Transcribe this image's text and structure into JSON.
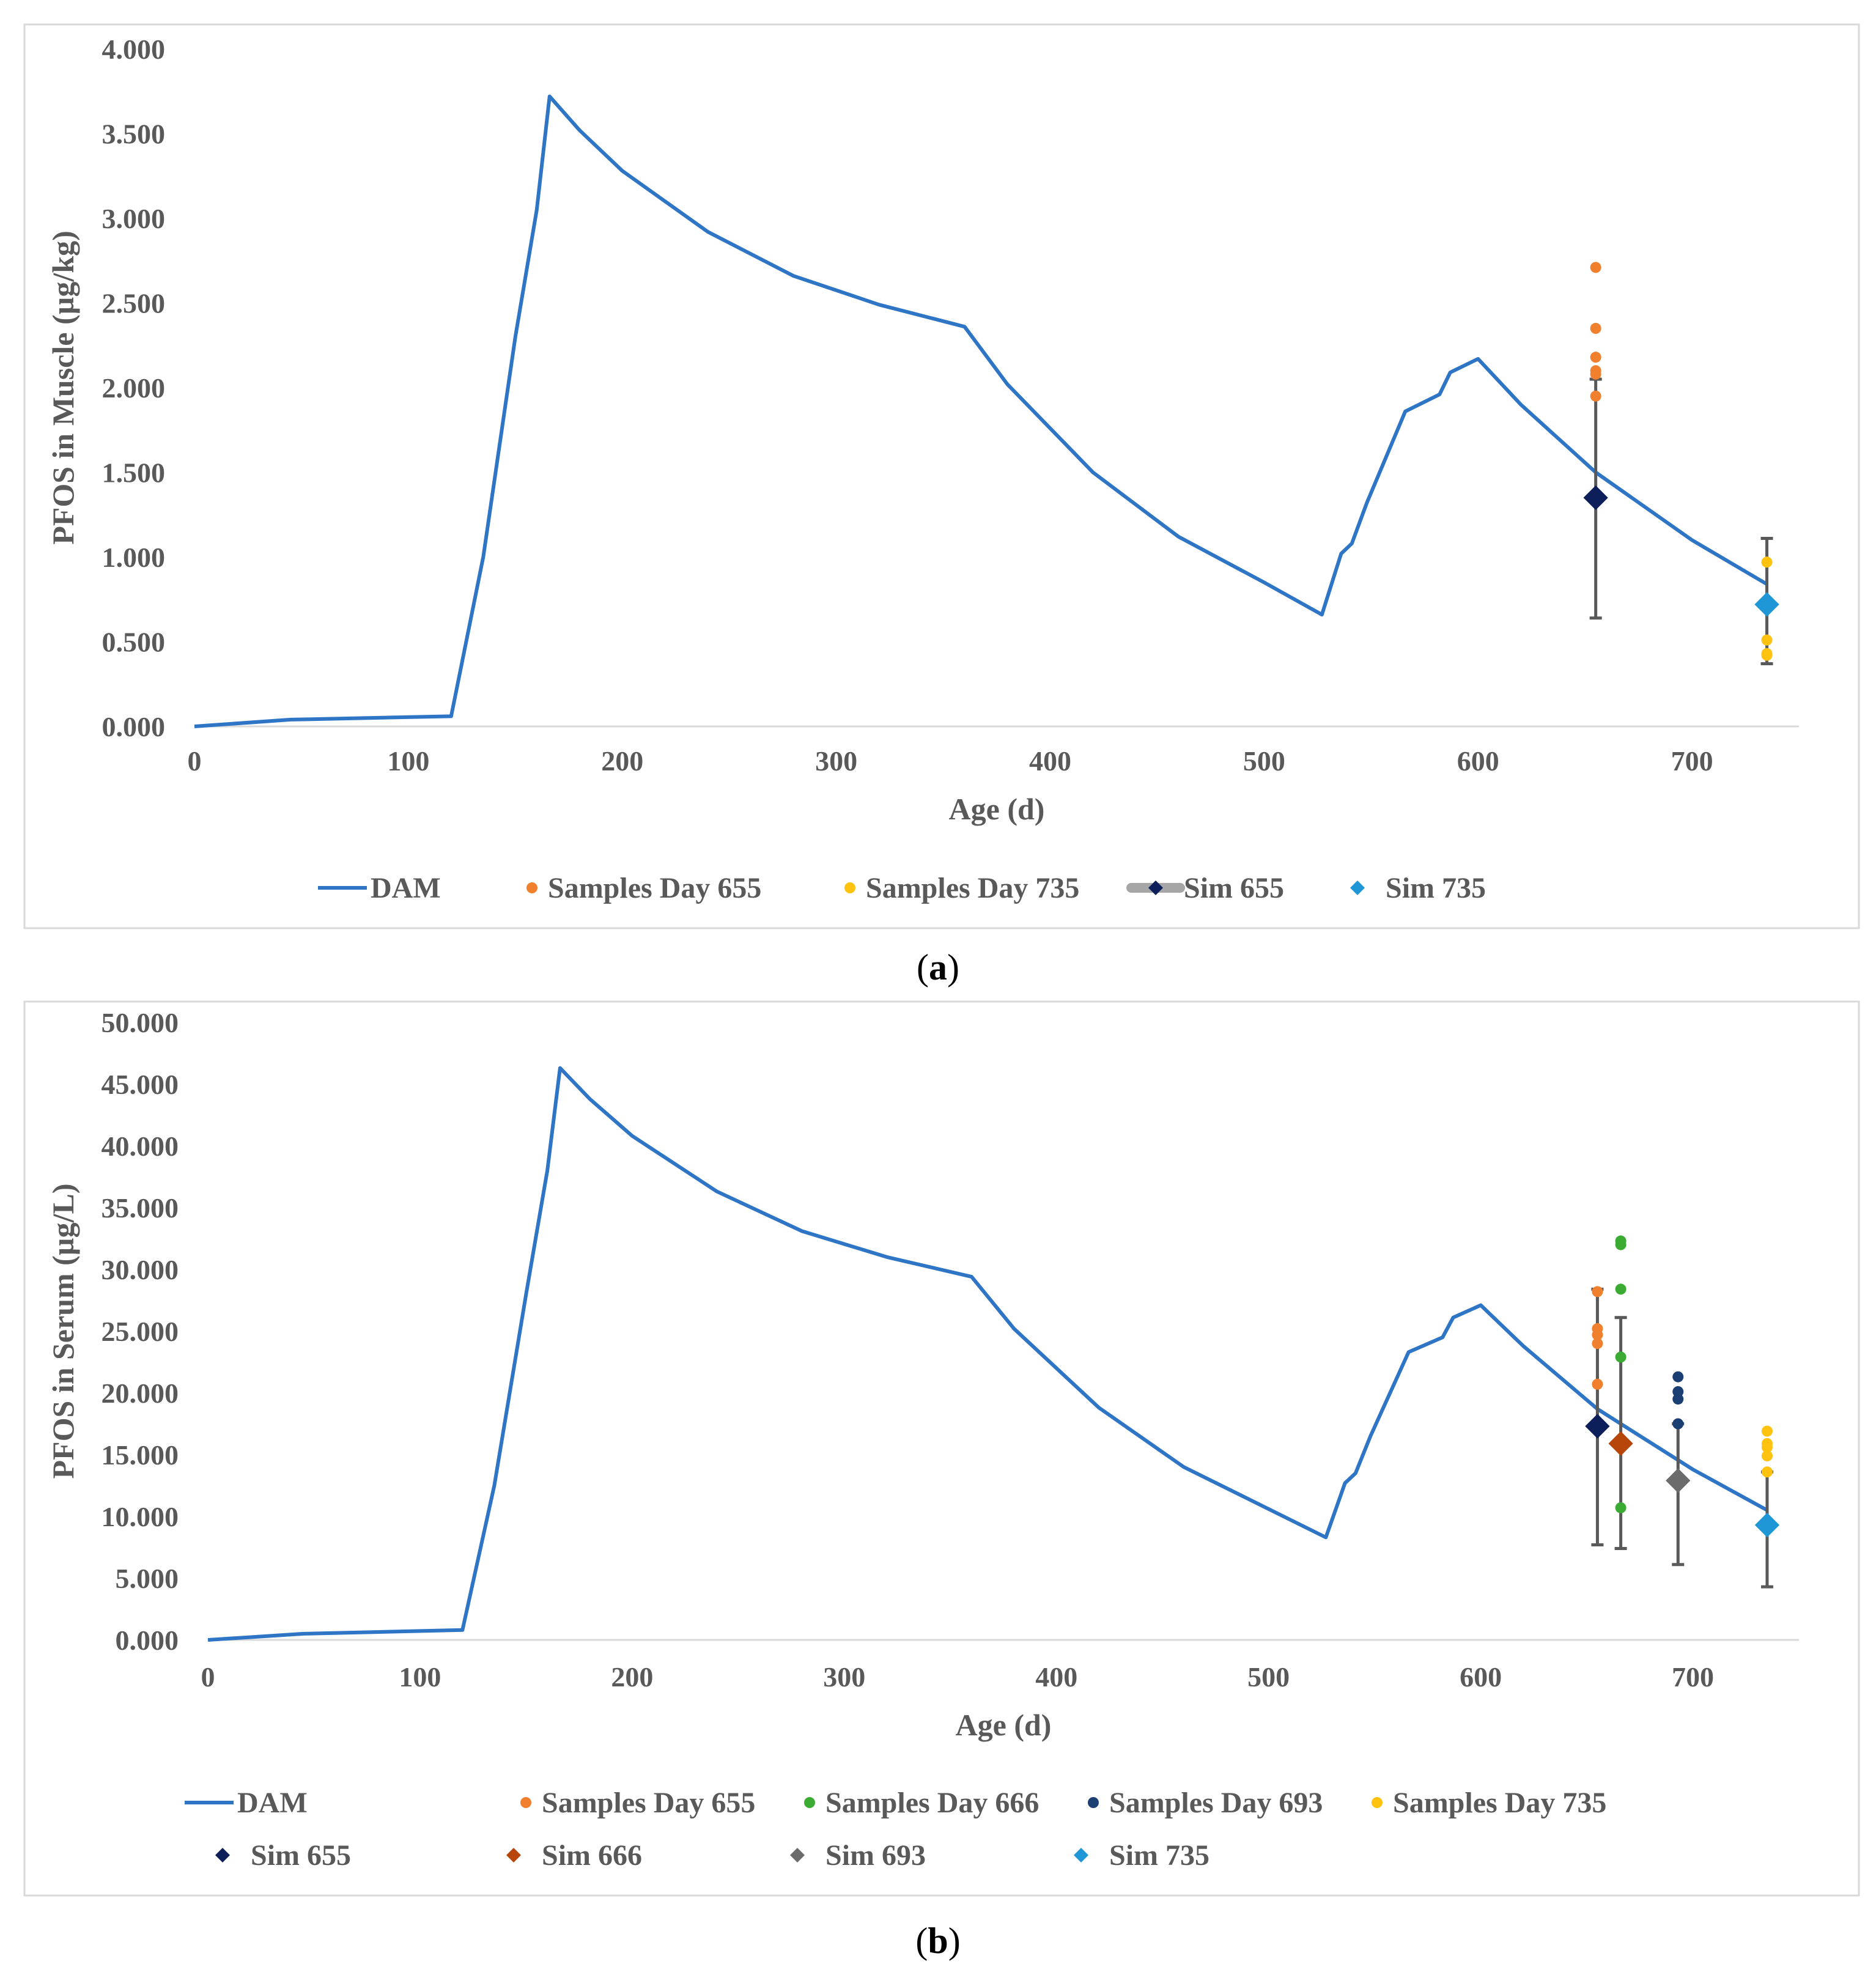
{
  "chart_data": [
    {
      "type": "line",
      "panel": "a",
      "caption": "a",
      "xlabel": "Age (d)",
      "ylabel": "PFOS in Muscle (µg/kg)",
      "xlim": [
        0,
        750
      ],
      "ylim": [
        0,
        4
      ],
      "xticks": [
        0,
        100,
        200,
        300,
        400,
        500,
        600,
        700
      ],
      "xtick_labels": [
        "0",
        "100",
        "200",
        "300",
        "400",
        "500",
        "600",
        "700"
      ],
      "yticks": [
        0,
        0.5,
        1,
        1.5,
        2,
        2.5,
        3,
        3.5,
        4
      ],
      "ytick_labels": [
        "0.000",
        "0.500",
        "1.000",
        "1.500",
        "2.000",
        "2.500",
        "3.000",
        "3.500",
        "4.000"
      ],
      "grid": false,
      "legend_position": "bottom",
      "series": [
        {
          "name": "DAM",
          "kind": "line",
          "color": "#2E75C6",
          "points": [
            [
              0,
              0
            ],
            [
              45,
              0.04
            ],
            [
              120,
              0.06
            ],
            [
              135,
              1.0
            ],
            [
              150,
              2.3
            ],
            [
              160,
              3.05
            ],
            [
              166,
              3.72
            ],
            [
              180,
              3.52
            ],
            [
              200,
              3.28
            ],
            [
              240,
              2.92
            ],
            [
              280,
              2.66
            ],
            [
              320,
              2.49
            ],
            [
              360,
              2.36
            ],
            [
              380,
              2.02
            ],
            [
              420,
              1.5
            ],
            [
              460,
              1.12
            ],
            [
              500,
              0.85
            ],
            [
              527,
              0.66
            ],
            [
              536,
              1.02
            ],
            [
              541,
              1.08
            ],
            [
              548,
              1.32
            ],
            [
              566,
              1.86
            ],
            [
              582,
              1.96
            ],
            [
              587,
              2.09
            ],
            [
              600,
              2.17
            ],
            [
              620,
              1.9
            ],
            [
              655,
              1.5
            ],
            [
              700,
              1.1
            ],
            [
              735,
              0.84
            ]
          ]
        },
        {
          "name": "Samples Day 655",
          "kind": "scatter",
          "color": "#F07F2E",
          "x": 655,
          "values": [
            2.71,
            2.35,
            2.18,
            2.1,
            2.08,
            1.95
          ]
        },
        {
          "name": "Samples Day 735",
          "kind": "scatter",
          "color": "#FFC20E",
          "x": 735,
          "values": [
            0.97,
            0.51,
            0.43,
            0.42
          ]
        },
        {
          "name": "Sim 655",
          "kind": "diamond",
          "color": "#0D1F5A",
          "x": 655,
          "value": 1.35,
          "error": [
            0.64,
            2.05
          ],
          "legend_swatch": "#A6A6A6"
        },
        {
          "name": "Sim 735",
          "kind": "diamond",
          "color": "#1F97D6",
          "x": 735,
          "value": 0.72,
          "error": [
            0.37,
            1.11
          ]
        }
      ]
    },
    {
      "type": "line",
      "panel": "b",
      "caption": "b",
      "xlabel": "Age (d)",
      "ylabel": "PFOS in Serum (µg/L)",
      "xlim": [
        0,
        750
      ],
      "ylim": [
        0,
        50
      ],
      "xticks": [
        0,
        100,
        200,
        300,
        400,
        500,
        600,
        700
      ],
      "xtick_labels": [
        "0",
        "100",
        "200",
        "300",
        "400",
        "500",
        "600",
        "700"
      ],
      "yticks": [
        0,
        5,
        10,
        15,
        20,
        25,
        30,
        35,
        40,
        45,
        50
      ],
      "ytick_labels": [
        "0.000",
        "5.000",
        "10.000",
        "15.000",
        "20.000",
        "25.000",
        "30.000",
        "35.000",
        "40.000",
        "45.000",
        "50.000"
      ],
      "grid": false,
      "legend_position": "bottom",
      "series": [
        {
          "name": "DAM",
          "kind": "line",
          "color": "#2E75C6",
          "points": [
            [
              0,
              0
            ],
            [
              45,
              0.5
            ],
            [
              120,
              0.8
            ],
            [
              135,
              12.5
            ],
            [
              150,
              28.0
            ],
            [
              160,
              38.0
            ],
            [
              166,
              46.3
            ],
            [
              180,
              43.8
            ],
            [
              200,
              40.8
            ],
            [
              240,
              36.3
            ],
            [
              280,
              33.1
            ],
            [
              320,
              31.0
            ],
            [
              360,
              29.4
            ],
            [
              380,
              25.2
            ],
            [
              420,
              18.8
            ],
            [
              460,
              14.0
            ],
            [
              500,
              10.6
            ],
            [
              527,
              8.3
            ],
            [
              536,
              12.7
            ],
            [
              541,
              13.5
            ],
            [
              548,
              16.5
            ],
            [
              566,
              23.3
            ],
            [
              582,
              24.5
            ],
            [
              587,
              26.1
            ],
            [
              600,
              27.1
            ],
            [
              620,
              23.8
            ],
            [
              655,
              18.7
            ],
            [
              700,
              13.8
            ],
            [
              735,
              10.5
            ]
          ]
        },
        {
          "name": "Samples Day 655",
          "kind": "scatter",
          "color": "#F07F2E",
          "x": 655,
          "values": [
            28.2,
            25.2,
            24.7,
            24.0,
            20.7
          ]
        },
        {
          "name": "Samples Day 666",
          "kind": "scatter",
          "color": "#3CAB34",
          "x": 666,
          "values": [
            32.3,
            32.0,
            28.4,
            22.9,
            10.7
          ]
        },
        {
          "name": "Samples Day 693",
          "kind": "scatter",
          "color": "#1B3F73",
          "x": 693,
          "values": [
            21.3,
            20.1,
            19.5,
            17.5
          ]
        },
        {
          "name": "Samples Day 735",
          "kind": "scatter",
          "color": "#FFC20E",
          "x": 735,
          "values": [
            16.9,
            15.9,
            15.6,
            14.9,
            13.6
          ]
        },
        {
          "name": "Sim 655",
          "kind": "diamond",
          "color": "#0D1F5A",
          "x": 655,
          "value": 17.3,
          "error": [
            7.7,
            28.4
          ]
        },
        {
          "name": "Sim 666",
          "kind": "diamond",
          "color": "#B7460B",
          "x": 666,
          "value": 15.9,
          "error": [
            7.4,
            26.1
          ]
        },
        {
          "name": "Sim 693",
          "kind": "diamond",
          "color": "#6B6B6B",
          "x": 693,
          "value": 12.9,
          "error": [
            6.1,
            17.5
          ]
        },
        {
          "name": "Sim 735",
          "kind": "diamond",
          "color": "#1F97D6",
          "x": 735,
          "value": 9.3,
          "error": [
            4.3,
            13.6
          ]
        }
      ]
    }
  ]
}
